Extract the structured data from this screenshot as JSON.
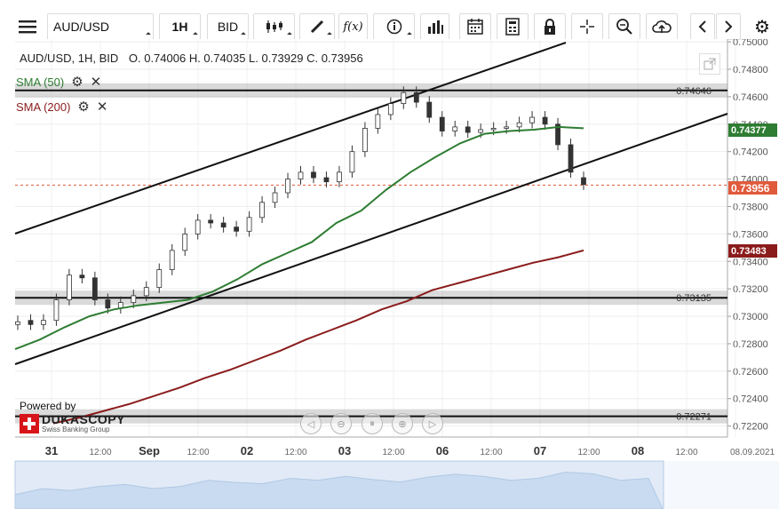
{
  "toolbar": {
    "menu_icon": "hamburger-icon",
    "symbol": "AUD/USD",
    "timeframe": "1H",
    "price_type": "BID",
    "tools": [
      "candles-icon",
      "draw-icon",
      "fx-icon",
      "info-icon",
      "bar-chart-icon",
      "calendar-icon",
      "calculator-icon",
      "lock-icon",
      "crosshair-icon",
      "zoom-icon",
      "cloud-upload-icon"
    ],
    "nav_icons": [
      "chevron-left-icon",
      "chevron-right-icon",
      "gear-icon"
    ],
    "fx_label": "f(x)"
  },
  "chart": {
    "header_symbol": "AUD/USD, 1H, BID",
    "ohlc": "O. 0.74006  H. 0.74035  L. 0.73929  C. 0.73956",
    "indicators": [
      {
        "label": "SMA (50)",
        "color": "#2e7d32"
      },
      {
        "label": "SMA (200)",
        "color": "#8b1c1c"
      }
    ],
    "hlines": [
      {
        "value": 0.74646,
        "label": "0.74646"
      },
      {
        "value": 0.73135,
        "label": "0.73135"
      },
      {
        "value": 0.72271,
        "label": "0.72271"
      }
    ],
    "price_tags": [
      {
        "value": 0.74377,
        "label": "0.74377",
        "color": "#2e7d32"
      },
      {
        "value": 0.73956,
        "label": "0.73956",
        "color": "#e05a3c"
      },
      {
        "value": 0.73483,
        "label": "0.73483",
        "color": "#8b1c1c"
      }
    ],
    "current_price": 0.73956,
    "brand": {
      "powered_by": "Powered by",
      "name": "DUKASCOPY",
      "tagline": "Swiss Banking Group"
    },
    "expand_icon": "expand-icon",
    "nav_controls": [
      "rewind-icon",
      "zoom-out-icon",
      "reset-icon",
      "zoom-in-icon",
      "forward-icon"
    ]
  },
  "chart_data": {
    "type": "line",
    "title": "AUD/USD, 1H, BID",
    "y_ticks": [
      "0.75000",
      "0.74800",
      "0.74600",
      "0.74400",
      "0.74200",
      "0.74000",
      "0.73800",
      "0.73600",
      "0.73400",
      "0.73200",
      "0.73000",
      "0.72800",
      "0.72600",
      "0.72400",
      "0.72200"
    ],
    "ylim": [
      0.7212,
      0.7502
    ],
    "x_ticks": [
      "31",
      "12:00",
      "Sep",
      "12:00",
      "02",
      "12:00",
      "03",
      "12:00",
      "06",
      "12:00",
      "07",
      "12:00",
      "08",
      "12:00",
      "08.09.2021"
    ],
    "series": [
      {
        "name": "SMA (50)",
        "values": [
          0.7276,
          0.7283,
          0.7292,
          0.73,
          0.7305,
          0.7308,
          0.731,
          0.7312,
          0.7318,
          0.7327,
          0.7338,
          0.7346,
          0.7354,
          0.7368,
          0.7377,
          0.7392,
          0.7405,
          0.7416,
          0.7426,
          0.7433,
          0.7435,
          0.7436,
          0.7438,
          0.7437
        ]
      },
      {
        "name": "SMA (200)",
        "values": [
          0.7222,
          0.7226,
          0.7231,
          0.7236,
          0.7242,
          0.7248,
          0.7255,
          0.7261,
          0.7268,
          0.7275,
          0.7283,
          0.729,
          0.7297,
          0.7305,
          0.7311,
          0.7319,
          0.7324,
          0.7329,
          0.7334,
          0.7339,
          0.7343,
          0.7348
        ]
      }
    ],
    "candles_close": [
      0.7296,
      0.7294,
      0.7297,
      0.7312,
      0.733,
      0.7328,
      0.7312,
      0.7306,
      0.731,
      0.7315,
      0.7321,
      0.7334,
      0.7348,
      0.736,
      0.737,
      0.7368,
      0.7365,
      0.7362,
      0.7372,
      0.7383,
      0.739,
      0.74,
      0.7405,
      0.7401,
      0.7398,
      0.7405,
      0.742,
      0.7437,
      0.7447,
      0.7455,
      0.7463,
      0.7456,
      0.7445,
      0.7435,
      0.7438,
      0.7434,
      0.7436,
      0.7437,
      0.7438,
      0.7441,
      0.7445,
      0.744,
      0.7425,
      0.7405,
      0.7396
    ],
    "candles_open": [
      0.7294,
      0.7297,
      0.7294,
      0.7297,
      0.7312,
      0.733,
      0.7328,
      0.7312,
      0.7306,
      0.731,
      0.7315,
      0.7321,
      0.7334,
      0.7348,
      0.736,
      0.737,
      0.7368,
      0.7365,
      0.7362,
      0.7372,
      0.7383,
      0.739,
      0.74,
      0.7405,
      0.7401,
      0.7398,
      0.7405,
      0.742,
      0.7437,
      0.7447,
      0.7455,
      0.7463,
      0.7456,
      0.7445,
      0.7435,
      0.7438,
      0.7434,
      0.7436,
      0.7437,
      0.7438,
      0.7441,
      0.7445,
      0.744,
      0.7425,
      0.7401
    ],
    "grid": true,
    "legend": "top-left"
  }
}
